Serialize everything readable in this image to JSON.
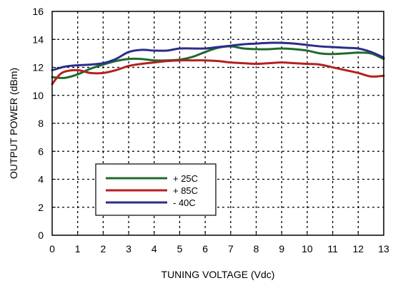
{
  "chart_data": {
    "type": "line",
    "title": "",
    "xlabel": "TUNING VOLTAGE (Vdc)",
    "ylabel": "OUTPUT POWER (dBm)",
    "xlim": [
      0,
      13
    ],
    "ylim": [
      0,
      16
    ],
    "x_ticks": [
      "0",
      "1",
      "2",
      "3",
      "4",
      "5",
      "6",
      "7",
      "8",
      "9",
      "10",
      "11",
      "12",
      "13"
    ],
    "y_ticks": [
      "0",
      "2",
      "4",
      "6",
      "8",
      "10",
      "12",
      "14",
      "16"
    ],
    "grid": true,
    "legend_position": "lower-left",
    "series": [
      {
        "name": "+ 25C",
        "color": "#1f6b2e",
        "points": [
          [
            0,
            11.3
          ],
          [
            0.5,
            11.25
          ],
          [
            1,
            11.5
          ],
          [
            1.5,
            11.9
          ],
          [
            2,
            12.2
          ],
          [
            2.5,
            12.45
          ],
          [
            3,
            12.6
          ],
          [
            3.5,
            12.6
          ],
          [
            4,
            12.5
          ],
          [
            4.5,
            12.5
          ],
          [
            5,
            12.55
          ],
          [
            5.5,
            12.75
          ],
          [
            6,
            13.1
          ],
          [
            6.5,
            13.4
          ],
          [
            7,
            13.5
          ],
          [
            7.5,
            13.35
          ],
          [
            8,
            13.3
          ],
          [
            8.5,
            13.3
          ],
          [
            9,
            13.35
          ],
          [
            9.5,
            13.3
          ],
          [
            10,
            13.2
          ],
          [
            10.5,
            13.0
          ],
          [
            11,
            12.95
          ],
          [
            11.5,
            13.0
          ],
          [
            12,
            13.05
          ],
          [
            12.5,
            13.0
          ],
          [
            13,
            12.6
          ]
        ]
      },
      {
        "name": "+ 85C",
        "color": "#b52020",
        "points": [
          [
            0,
            10.8
          ],
          [
            0.25,
            11.4
          ],
          [
            0.5,
            11.7
          ],
          [
            1,
            11.8
          ],
          [
            1.5,
            11.6
          ],
          [
            2,
            11.6
          ],
          [
            2.5,
            11.8
          ],
          [
            3,
            12.1
          ],
          [
            3.5,
            12.25
          ],
          [
            4,
            12.35
          ],
          [
            4.5,
            12.45
          ],
          [
            5,
            12.5
          ],
          [
            5.5,
            12.5
          ],
          [
            6,
            12.5
          ],
          [
            6.5,
            12.45
          ],
          [
            7,
            12.35
          ],
          [
            7.5,
            12.3
          ],
          [
            8,
            12.25
          ],
          [
            8.5,
            12.3
          ],
          [
            9,
            12.35
          ],
          [
            9.5,
            12.3
          ],
          [
            10,
            12.25
          ],
          [
            10.5,
            12.2
          ],
          [
            11,
            12.0
          ],
          [
            11.5,
            11.8
          ],
          [
            12,
            11.6
          ],
          [
            12.5,
            11.35
          ],
          [
            13,
            11.4
          ]
        ]
      },
      {
        "name": "- 40C",
        "color": "#2b2d8c",
        "points": [
          [
            0,
            11.8
          ],
          [
            0.5,
            12.05
          ],
          [
            1,
            12.15
          ],
          [
            1.5,
            12.2
          ],
          [
            2,
            12.3
          ],
          [
            2.5,
            12.6
          ],
          [
            3,
            13.1
          ],
          [
            3.5,
            13.25
          ],
          [
            4,
            13.2
          ],
          [
            4.5,
            13.2
          ],
          [
            5,
            13.35
          ],
          [
            5.5,
            13.35
          ],
          [
            6,
            13.35
          ],
          [
            6.5,
            13.45
          ],
          [
            7,
            13.55
          ],
          [
            7.5,
            13.65
          ],
          [
            8,
            13.7
          ],
          [
            8.5,
            13.75
          ],
          [
            9,
            13.75
          ],
          [
            9.5,
            13.7
          ],
          [
            10,
            13.6
          ],
          [
            10.5,
            13.5
          ],
          [
            11,
            13.45
          ],
          [
            11.5,
            13.4
          ],
          [
            12,
            13.35
          ],
          [
            12.5,
            13.1
          ],
          [
            13,
            12.7
          ]
        ]
      }
    ]
  }
}
